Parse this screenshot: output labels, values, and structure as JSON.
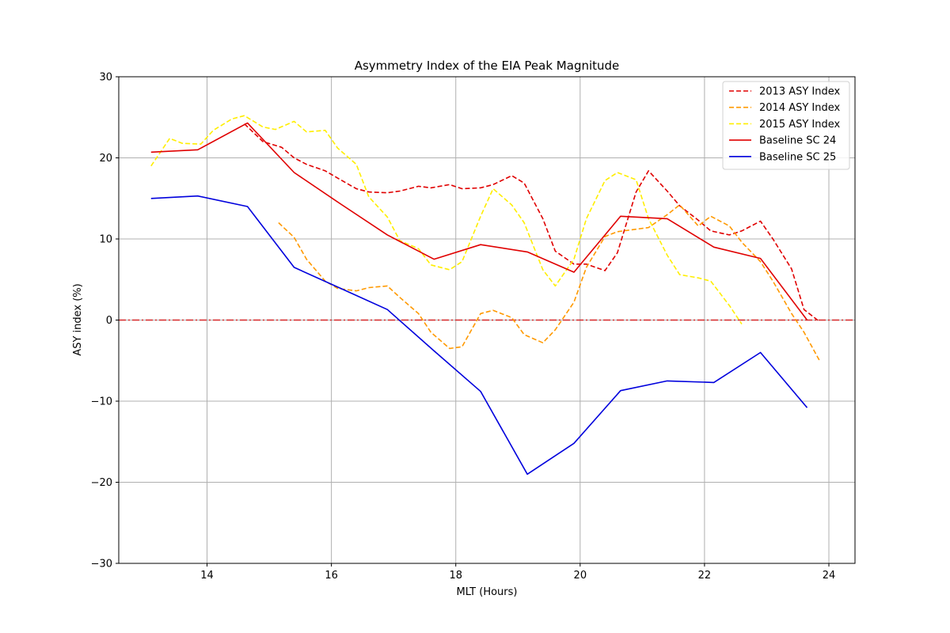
{
  "chart_data": {
    "type": "line",
    "title": "Asymmetry Index of the EIA Peak Magnitude",
    "xlabel": "MLT (Hours)",
    "ylabel": "ASY index (%)",
    "xlim": [
      12.58,
      24.42
    ],
    "ylim": [
      -30,
      30
    ],
    "xticks": [
      14,
      16,
      18,
      20,
      22,
      24
    ],
    "yticks": [
      -30,
      -20,
      -10,
      0,
      10,
      20,
      30
    ],
    "xtick_labels": [
      "14",
      "16",
      "18",
      "20",
      "22",
      "24"
    ],
    "ytick_labels": [
      "−30",
      "−20",
      "−10",
      "0",
      "10",
      "20",
      "30"
    ],
    "grid": true,
    "legend_position": "top-right",
    "reference_line": {
      "y": 0,
      "color": "#d62728",
      "style": "dash-dot"
    },
    "series": [
      {
        "name": "2013 ASY Index",
        "color": "#e00000",
        "dash": "dashed",
        "x": [
          14.6,
          14.9,
          15.2,
          15.4,
          15.6,
          15.9,
          16.1,
          16.4,
          16.6,
          16.9,
          17.1,
          17.4,
          17.6,
          17.9,
          18.1,
          18.4,
          18.6,
          18.9,
          19.1,
          19.4,
          19.6,
          19.9,
          20.1,
          20.4,
          20.6,
          20.9,
          21.1,
          21.4,
          21.6,
          21.9,
          22.1,
          22.4,
          22.6,
          22.9,
          23.1,
          23.4,
          23.6,
          23.85
        ],
        "y": [
          24.2,
          22.0,
          21.3,
          20.0,
          19.2,
          18.4,
          17.5,
          16.2,
          15.8,
          15.7,
          15.9,
          16.5,
          16.3,
          16.7,
          16.2,
          16.3,
          16.7,
          17.8,
          16.9,
          12.5,
          8.5,
          6.9,
          6.9,
          6.1,
          8.3,
          15.8,
          18.4,
          15.9,
          14.1,
          12.3,
          11.0,
          10.5,
          11.0,
          12.2,
          10.0,
          6.3,
          1.3,
          -0.2
        ]
      },
      {
        "name": "2014 ASY Index",
        "color": "#ff9900",
        "dash": "dashed",
        "x": [
          15.15,
          15.4,
          15.6,
          15.9,
          16.1,
          16.4,
          16.6,
          16.9,
          17.1,
          17.4,
          17.6,
          17.9,
          18.1,
          18.4,
          18.6,
          18.9,
          19.1,
          19.4,
          19.6,
          19.9,
          20.1,
          20.4,
          20.6,
          20.9,
          21.1,
          21.4,
          21.6,
          21.9,
          22.1,
          22.4,
          22.6,
          22.9,
          23.1,
          23.4,
          23.6,
          23.85
        ],
        "y": [
          12.0,
          10.2,
          7.5,
          4.8,
          3.9,
          3.6,
          4.0,
          4.2,
          2.8,
          0.8,
          -1.5,
          -3.5,
          -3.3,
          0.8,
          1.2,
          0.3,
          -1.8,
          -2.8,
          -1.2,
          2.2,
          6.5,
          10.3,
          10.9,
          11.2,
          11.4,
          13.0,
          14.2,
          11.6,
          12.8,
          11.6,
          9.6,
          7.2,
          4.8,
          0.8,
          -1.5,
          -5.0
        ]
      },
      {
        "name": "2015 ASY Index",
        "color": "#ffee00",
        "dash": "dashed",
        "x": [
          13.1,
          13.4,
          13.6,
          13.9,
          14.1,
          14.4,
          14.6,
          14.9,
          15.1,
          15.4,
          15.6,
          15.9,
          16.1,
          16.4,
          16.6,
          16.9,
          17.1,
          17.4,
          17.6,
          17.9,
          18.1,
          18.4,
          18.6,
          18.9,
          19.1,
          19.4,
          19.6,
          19.9,
          20.1,
          20.4,
          20.6,
          20.9,
          21.1,
          21.4,
          21.6,
          21.9,
          22.1,
          22.4,
          22.6
        ],
        "y": [
          19.0,
          22.4,
          21.8,
          21.7,
          23.4,
          24.8,
          25.2,
          23.8,
          23.5,
          24.5,
          23.2,
          23.4,
          21.2,
          19.2,
          15.2,
          12.7,
          9.8,
          8.8,
          6.8,
          6.2,
          7.2,
          12.8,
          16.2,
          14.2,
          12.0,
          6.2,
          4.2,
          7.5,
          12.5,
          17.2,
          18.2,
          17.3,
          12.5,
          8.0,
          5.6,
          5.2,
          4.8,
          1.8,
          -0.5
        ]
      },
      {
        "name": "Baseline SC 24",
        "color": "#e00000",
        "dash": "solid",
        "x": [
          13.1,
          13.85,
          14.65,
          15.4,
          16.15,
          16.9,
          17.65,
          18.4,
          19.15,
          19.9,
          20.65,
          21.4,
          22.15,
          22.9,
          23.65
        ],
        "y": [
          20.7,
          21.0,
          24.3,
          18.2,
          14.3,
          10.5,
          7.5,
          9.3,
          8.4,
          5.9,
          12.8,
          12.5,
          9.0,
          7.6,
          0.0
        ]
      },
      {
        "name": "Baseline SC 25",
        "color": "#0000dd",
        "dash": "solid",
        "x": [
          13.1,
          13.85,
          14.65,
          15.4,
          16.15,
          16.9,
          17.65,
          18.4,
          19.15,
          19.9,
          20.65,
          21.4,
          22.15,
          22.9,
          23.65
        ],
        "y": [
          15.0,
          15.3,
          14.0,
          6.5,
          3.9,
          1.3,
          -3.8,
          -8.8,
          -19.0,
          -15.2,
          -8.7,
          -7.5,
          -7.7,
          -4.0,
          -10.8
        ]
      }
    ]
  }
}
